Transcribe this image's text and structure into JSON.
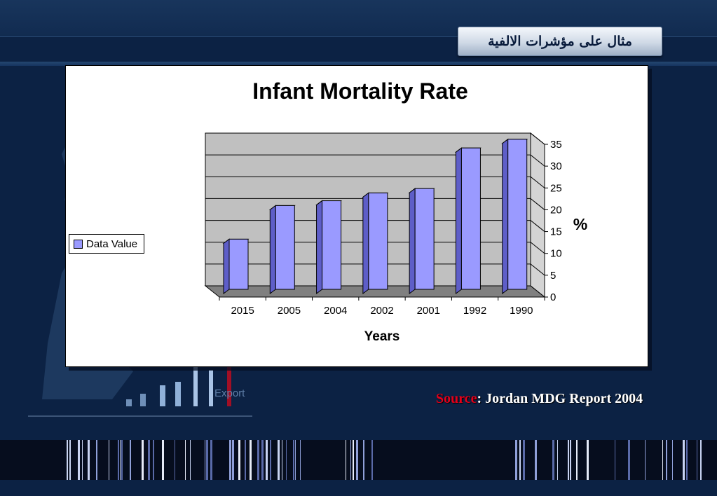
{
  "slide": {
    "title": "مثال على مؤشرات الالفية",
    "source_label": "Source",
    "source_text": ": Jordan MDG Report 2004"
  },
  "chart_data": {
    "type": "bar",
    "title": "Infant Mortality Rate",
    "xlabel": "Years",
    "ylabel": "%",
    "categories": [
      "2015",
      "2005",
      "2004",
      "2002",
      "2001",
      "1992",
      "1990"
    ],
    "series": [
      {
        "name": "Data Value",
        "values": [
          11.5,
          19.2,
          20.3,
          22.1,
          23.1,
          32.4,
          34.4
        ]
      }
    ],
    "ylim": [
      0,
      35
    ],
    "yticks": [
      0,
      5,
      10,
      15,
      20,
      25,
      30,
      35
    ],
    "grid": true,
    "legend_position": "left",
    "bar_color": "#9a9aff",
    "wall_color": "#c0c0c0",
    "floor_color": "#808080"
  }
}
